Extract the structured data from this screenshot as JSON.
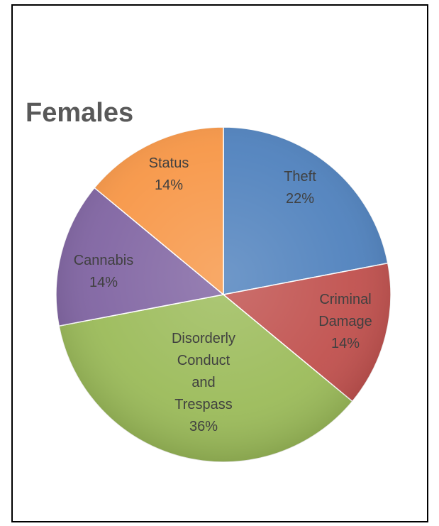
{
  "chart_data": {
    "type": "pie",
    "title": "Females",
    "slices": [
      {
        "label_lines": [
          "Theft"
        ],
        "percent_text": "22%",
        "value": 22,
        "color": "#4f81bd"
      },
      {
        "label_lines": [
          "Criminal",
          "Damage"
        ],
        "percent_text": "14%",
        "value": 14,
        "color": "#c0504d"
      },
      {
        "label_lines": [
          "Disorderly",
          "Conduct",
          "and",
          "Trespass"
        ],
        "percent_text": "36%",
        "value": 36,
        "color": "#9bbb59"
      },
      {
        "label_lines": [
          "Cannabis"
        ],
        "percent_text": "14%",
        "value": 14,
        "color": "#8064a2"
      },
      {
        "label_lines": [
          "Status"
        ],
        "percent_text": "14%",
        "value": 14,
        "color": "#f79646"
      }
    ],
    "legend": "none",
    "data_labels": "inside"
  }
}
